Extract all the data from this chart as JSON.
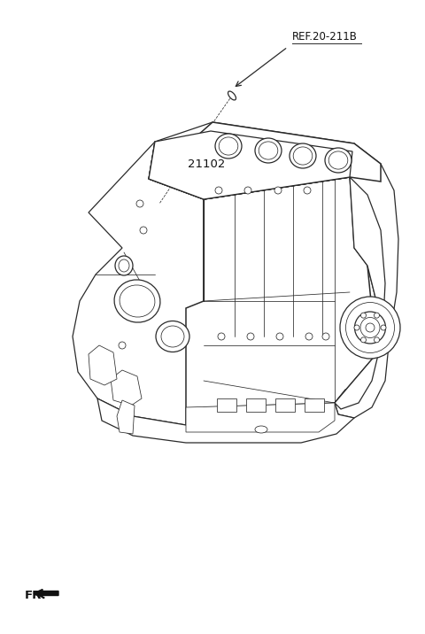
{
  "bg_color": "#ffffff",
  "line_color": "#2a2a2a",
  "ref_label": "REF.20-211B",
  "part_label": "21102",
  "fr_label": "FR.",
  "figsize": [
    4.8,
    7.16
  ],
  "dpi": 100,
  "lw_main": 0.9,
  "lw_thin": 0.55,
  "lw_thick": 1.1
}
